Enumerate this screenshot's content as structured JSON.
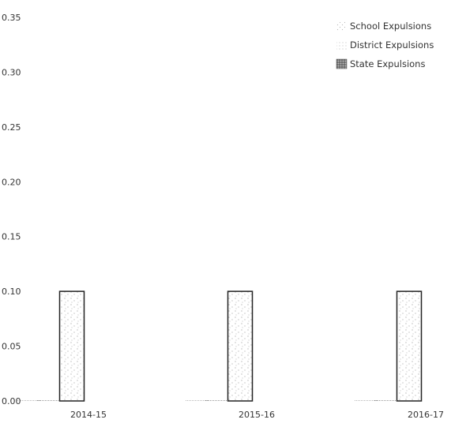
{
  "chart_data": {
    "type": "bar",
    "title": "",
    "xlabel": "",
    "ylabel": "",
    "categories": [
      "2014-15",
      "2015-16",
      "2016-17"
    ],
    "ylim": [
      0,
      0.35
    ],
    "yticks": [
      "0.00",
      "0.05",
      "0.10",
      "0.15",
      "0.20",
      "0.25",
      "0.30",
      "0.35"
    ],
    "grid": false,
    "legend_position": "top-right",
    "series": [
      {
        "name": "School Expulsions",
        "values": [
          0.0,
          0.0,
          0.0
        ],
        "color": "#b8b8b8",
        "pattern": "sparse-dots"
      },
      {
        "name": "District Expulsions",
        "values": [
          0.0,
          0.0,
          0.0
        ],
        "color": "#9a9a9a",
        "pattern": "fine-dots"
      },
      {
        "name": "State Expulsions",
        "values": [
          0.1,
          0.1,
          0.1
        ],
        "color": "#555555",
        "pattern": "dense-dots"
      }
    ]
  }
}
